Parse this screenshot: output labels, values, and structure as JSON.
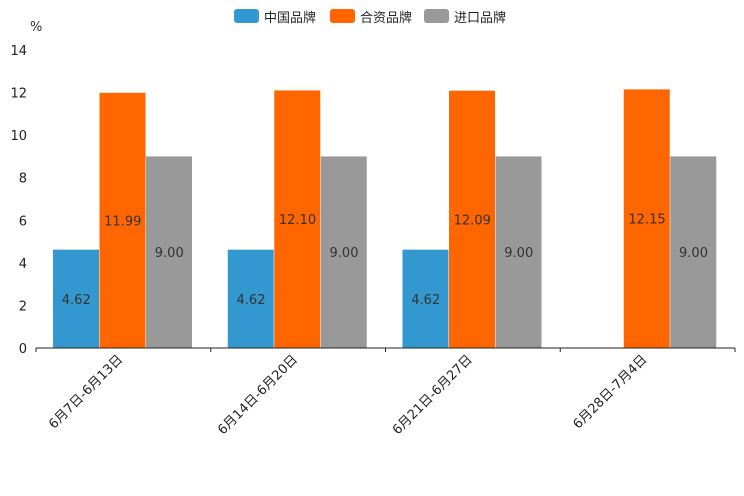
{
  "chart_data": {
    "type": "bar",
    "unit": "%",
    "categories": [
      "6月7日-6月13日",
      "6月14日-6月20日",
      "6月21日-6月27日",
      "6月28日-7月4日"
    ],
    "series": [
      {
        "name": "中国品牌",
        "color": "#3498d0",
        "values": [
          4.62,
          4.62,
          4.62,
          null
        ],
        "labels": [
          "4.62",
          "4.62",
          "4.62",
          ""
        ]
      },
      {
        "name": "合资品牌",
        "color": "#ff6600",
        "values": [
          11.99,
          12.1,
          12.09,
          12.15
        ],
        "labels": [
          "11.99",
          "12.10",
          "12.09",
          "12.15"
        ]
      },
      {
        "name": "进口品牌",
        "color": "#999999",
        "values": [
          9.0,
          9.0,
          9.0,
          9.0
        ],
        "labels": [
          "9.00",
          "9.00",
          "9.00",
          "9.00"
        ]
      }
    ],
    "ylim": [
      0,
      14
    ],
    "yticks": [
      0,
      2,
      4,
      6,
      8,
      10,
      12,
      14
    ],
    "legend_position": "top-center"
  }
}
